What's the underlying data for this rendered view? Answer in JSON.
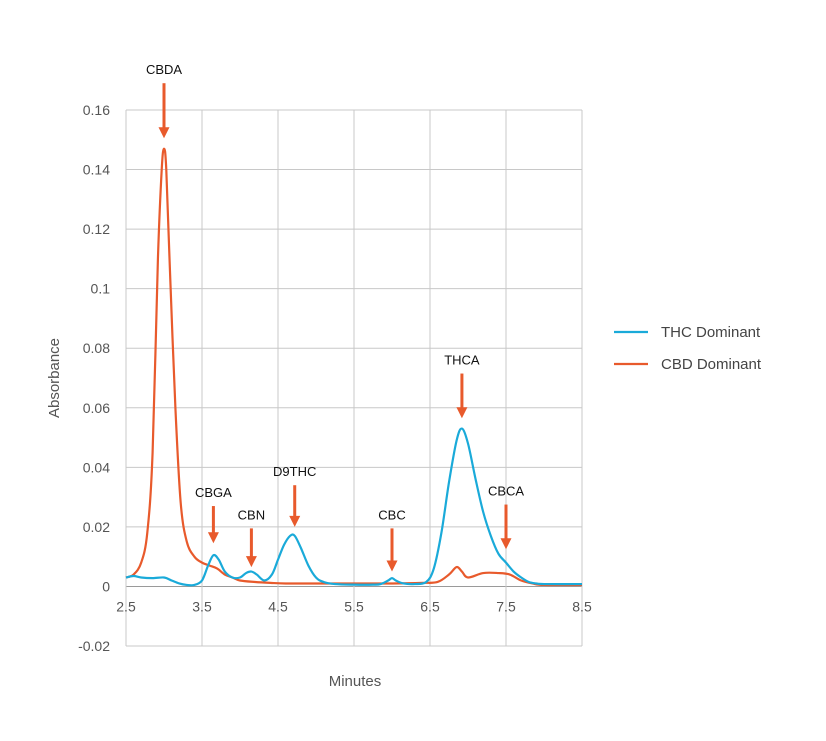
{
  "chart_data": {
    "type": "line",
    "xlabel": "Minutes",
    "ylabel": "Absorbance",
    "xlim": [
      2.5,
      8.5
    ],
    "ylim": [
      -0.02,
      0.16
    ],
    "x_ticks": [
      "2.5",
      "3.5",
      "4.5",
      "5.5",
      "6.5",
      "7.5",
      "8.5"
    ],
    "y_ticks": [
      "-0.02",
      "0",
      "0.02",
      "0.04",
      "0.06",
      "0.08",
      "0.1",
      "0.12",
      "0.14",
      "0.16"
    ],
    "grid": true,
    "legend_position": "right",
    "series": [
      {
        "name": "THC Dominant",
        "color": "#1AAAD9",
        "points": [
          [
            2.5,
            0.003
          ],
          [
            2.6,
            0.0035
          ],
          [
            2.7,
            0.003
          ],
          [
            2.85,
            0.0028
          ],
          [
            3.0,
            0.003
          ],
          [
            3.1,
            0.002
          ],
          [
            3.2,
            0.001
          ],
          [
            3.3,
            0.0005
          ],
          [
            3.4,
            0.0005
          ],
          [
            3.5,
            0.002
          ],
          [
            3.58,
            0.007
          ],
          [
            3.65,
            0.0105
          ],
          [
            3.72,
            0.009
          ],
          [
            3.8,
            0.005
          ],
          [
            3.9,
            0.003
          ],
          [
            4.0,
            0.003
          ],
          [
            4.08,
            0.0045
          ],
          [
            4.15,
            0.005
          ],
          [
            4.22,
            0.004
          ],
          [
            4.32,
            0.002
          ],
          [
            4.42,
            0.004
          ],
          [
            4.5,
            0.009
          ],
          [
            4.58,
            0.014
          ],
          [
            4.66,
            0.017
          ],
          [
            4.72,
            0.017
          ],
          [
            4.8,
            0.013
          ],
          [
            4.9,
            0.007
          ],
          [
            5.0,
            0.003
          ],
          [
            5.1,
            0.0015
          ],
          [
            5.25,
            0.0008
          ],
          [
            5.5,
            0.0006
          ],
          [
            5.75,
            0.0006
          ],
          [
            5.85,
            0.0008
          ],
          [
            5.95,
            0.002
          ],
          [
            6.0,
            0.0028
          ],
          [
            6.05,
            0.002
          ],
          [
            6.15,
            0.001
          ],
          [
            6.3,
            0.0008
          ],
          [
            6.45,
            0.0015
          ],
          [
            6.55,
            0.006
          ],
          [
            6.65,
            0.018
          ],
          [
            6.75,
            0.035
          ],
          [
            6.85,
            0.049
          ],
          [
            6.92,
            0.053
          ],
          [
            7.0,
            0.048
          ],
          [
            7.1,
            0.036
          ],
          [
            7.2,
            0.025
          ],
          [
            7.3,
            0.017
          ],
          [
            7.4,
            0.011
          ],
          [
            7.5,
            0.008
          ],
          [
            7.6,
            0.005
          ],
          [
            7.7,
            0.003
          ],
          [
            7.8,
            0.0015
          ],
          [
            7.9,
            0.001
          ],
          [
            8.0,
            0.0008
          ],
          [
            8.5,
            0.0008
          ]
        ]
      },
      {
        "name": "CBD Dominant",
        "color": "#E85A2C",
        "points": [
          [
            2.5,
            0.003
          ],
          [
            2.6,
            0.004
          ],
          [
            2.7,
            0.008
          ],
          [
            2.78,
            0.018
          ],
          [
            2.85,
            0.045
          ],
          [
            2.92,
            0.11
          ],
          [
            2.97,
            0.14
          ],
          [
            3.0,
            0.147
          ],
          [
            3.03,
            0.14
          ],
          [
            3.08,
            0.105
          ],
          [
            3.15,
            0.06
          ],
          [
            3.22,
            0.028
          ],
          [
            3.3,
            0.015
          ],
          [
            3.4,
            0.01
          ],
          [
            3.5,
            0.008
          ],
          [
            3.6,
            0.007
          ],
          [
            3.7,
            0.006
          ],
          [
            3.8,
            0.004
          ],
          [
            3.9,
            0.003
          ],
          [
            4.0,
            0.002
          ],
          [
            4.2,
            0.0015
          ],
          [
            4.4,
            0.0012
          ],
          [
            4.6,
            0.001
          ],
          [
            5.0,
            0.001
          ],
          [
            5.5,
            0.001
          ],
          [
            6.0,
            0.001
          ],
          [
            6.4,
            0.0012
          ],
          [
            6.6,
            0.0015
          ],
          [
            6.75,
            0.004
          ],
          [
            6.85,
            0.0065
          ],
          [
            6.92,
            0.005
          ],
          [
            7.0,
            0.003
          ],
          [
            7.2,
            0.0045
          ],
          [
            7.4,
            0.0045
          ],
          [
            7.55,
            0.004
          ],
          [
            7.7,
            0.002
          ],
          [
            7.85,
            0.001
          ],
          [
            8.0,
            0.0005
          ],
          [
            8.5,
            0.0005
          ]
        ]
      }
    ],
    "annotations": [
      {
        "label": "CBDA",
        "x": 3.0,
        "y_top": 0.169,
        "y_tip": 0.1505
      },
      {
        "label": "CBGA",
        "x": 3.65,
        "y_top": 0.027,
        "y_tip": 0.0145
      },
      {
        "label": "CBN",
        "x": 4.15,
        "y_top": 0.0195,
        "y_tip": 0.0065
      },
      {
        "label": "D9THC",
        "x": 4.72,
        "y_top": 0.034,
        "y_tip": 0.02
      },
      {
        "label": "CBC",
        "x": 6.0,
        "y_top": 0.0195,
        "y_tip": 0.005
      },
      {
        "label": "THCA",
        "x": 6.92,
        "y_top": 0.0715,
        "y_tip": 0.0565
      },
      {
        "label": "CBCA",
        "x": 7.5,
        "y_top": 0.0275,
        "y_tip": 0.0125
      }
    ],
    "annotation_color": "#E85A2C"
  }
}
